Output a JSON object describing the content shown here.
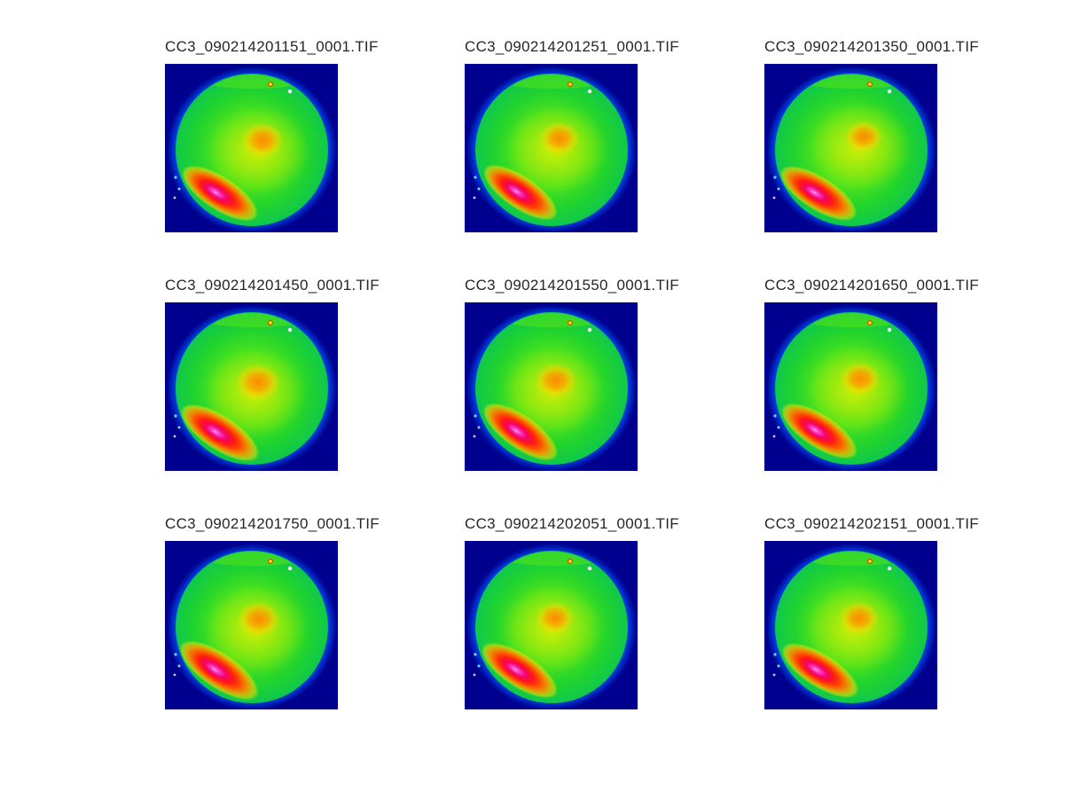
{
  "figure": {
    "background_color": "#FFFFFF",
    "title_color": "#262626"
  },
  "palette": {
    "image_background": "#00008F",
    "glow_cyan": "#18D8B8",
    "glow_blue": "#0040E0",
    "disk_green": "#3CE01E",
    "disk_yellow_green": "#8CEC1E",
    "wash_yellow": "#E6F000",
    "blob_orange": "#FF8400",
    "streak_red": "#FF1418",
    "streak_magenta": "#FB3CCC",
    "streak_pink_core": "#FFA8DE",
    "speck_white": "#FFFFFF",
    "speck_yellow": "#FFE000"
  },
  "chart_data": {
    "type": "heatmap",
    "layout": {
      "rows": 3,
      "cols": 3
    },
    "colormap": "rainbow (blue=low, green=mid, orange/red/magenta=high)",
    "description": "Montage of nine false-color circular all-sky camera frames on a dark navy background. Each frame shows a mostly green disk with a cyan-blue halo, a diffuse orange hotspot near disk center, and a bright red streak with a magenta-pink core in the lower-left of the disk, plus small white/yellow specks on the upper-right rim.",
    "panels": [
      {
        "title": "CC3_090214201151_0001.TIF",
        "variation": {
          "bx": 6,
          "by": -6,
          "bs": 1.0,
          "sa": 33,
          "ss": 1.0,
          "sx": 0,
          "sy": 0
        }
      },
      {
        "title": "CC3_090214201251_0001.TIF",
        "variation": {
          "bx": 3,
          "by": -8,
          "bs": 0.95,
          "sa": 34,
          "ss": 0.98,
          "sx": 1,
          "sy": -1
        }
      },
      {
        "title": "CC3_090214201350_0001.TIF",
        "variation": {
          "bx": 8,
          "by": -10,
          "bs": 0.9,
          "sa": 32,
          "ss": 1.0,
          "sx": -1,
          "sy": 0
        }
      },
      {
        "title": "CC3_090214201450_0001.TIF",
        "variation": {
          "bx": 1,
          "by": -2,
          "bs": 1.05,
          "sa": 33,
          "ss": 1.03,
          "sx": 0,
          "sy": 1
        }
      },
      {
        "title": "CC3_090214201550_0001.TIF",
        "variation": {
          "bx": -1,
          "by": -4,
          "bs": 1.0,
          "sa": 35,
          "ss": 1.0,
          "sx": 1,
          "sy": 0
        }
      },
      {
        "title": "CC3_090214201650_0001.TIF",
        "variation": {
          "bx": 4,
          "by": -6,
          "bs": 0.95,
          "sa": 33,
          "ss": 1.0,
          "sx": 0,
          "sy": -1
        }
      },
      {
        "title": "CC3_090214201750_0001.TIF",
        "variation": {
          "bx": 2,
          "by": -4,
          "bs": 1.0,
          "sa": 34,
          "ss": 1.05,
          "sx": -1,
          "sy": 0
        }
      },
      {
        "title": "CC3_090214202051_0001.TIF",
        "variation": {
          "bx": -2,
          "by": -5,
          "bs": 0.92,
          "sa": 33,
          "ss": 1.0,
          "sx": 0,
          "sy": 0
        }
      },
      {
        "title": "CC3_090214202151_0001.TIF",
        "variation": {
          "bx": 3,
          "by": -5,
          "bs": 0.95,
          "sa": 32,
          "ss": 1.0,
          "sx": 1,
          "sy": 0
        }
      }
    ]
  }
}
